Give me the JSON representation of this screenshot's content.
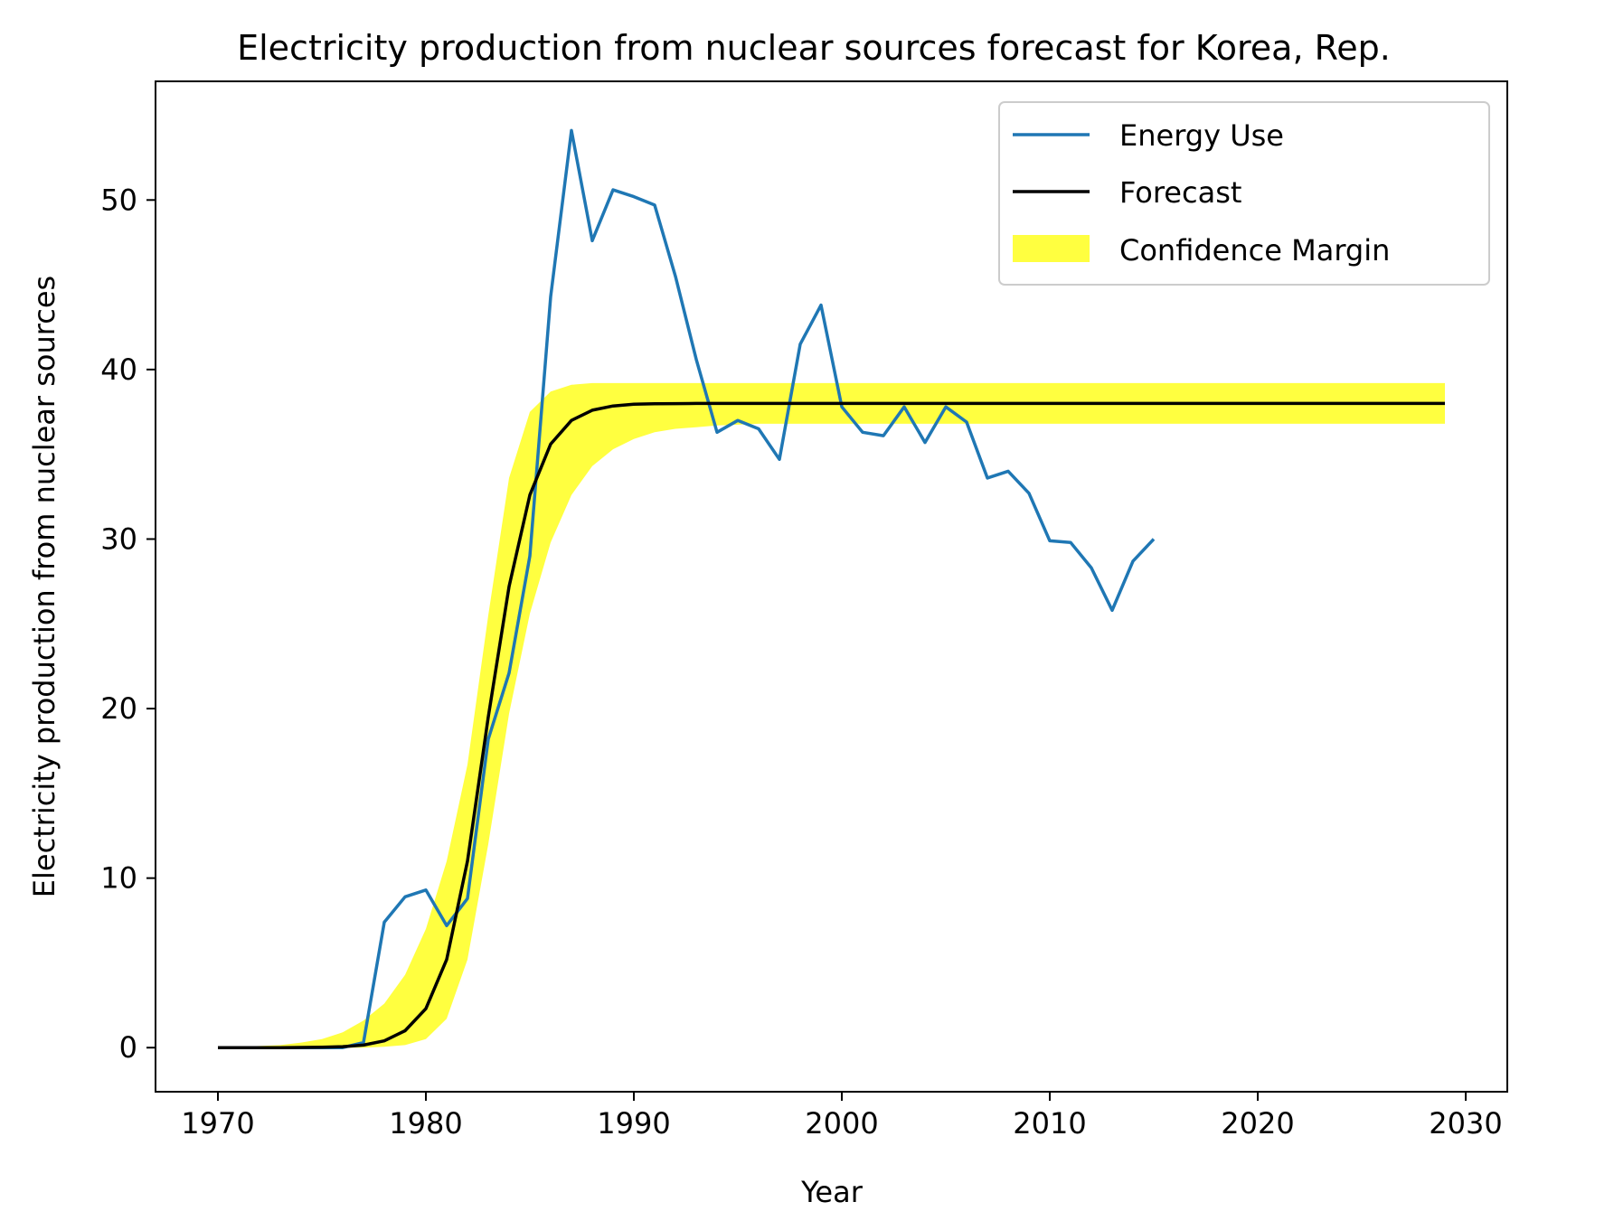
{
  "chart_data": {
    "type": "line",
    "title": "Electricity production from nuclear sources forecast for Korea, Rep.",
    "xlabel": "Year",
    "ylabel": "Electricity production from nuclear sources",
    "xlim": [
      1967,
      2032
    ],
    "ylim": [
      -2.6,
      57
    ],
    "xticks": [
      1970,
      1980,
      1990,
      2000,
      2010,
      2020,
      2030
    ],
    "yticks": [
      0,
      10,
      20,
      30,
      40,
      50
    ],
    "grid": false,
    "legend_position": "top-right",
    "colors": {
      "energy": "#1f77b4",
      "forecast": "#000000",
      "band": "#ffff00"
    },
    "series": [
      {
        "name": "Energy Use",
        "type": "line",
        "x": [
          1970,
          1971,
          1972,
          1973,
          1974,
          1975,
          1976,
          1977,
          1978,
          1979,
          1980,
          1981,
          1982,
          1983,
          1984,
          1985,
          1986,
          1987,
          1988,
          1989,
          1990,
          1991,
          1992,
          1993,
          1994,
          1995,
          1996,
          1997,
          1998,
          1999,
          2000,
          2001,
          2002,
          2003,
          2004,
          2005,
          2006,
          2007,
          2008,
          2009,
          2010,
          2011,
          2012,
          2013,
          2014,
          2015
        ],
        "values": [
          0,
          0,
          0,
          0,
          0,
          0,
          0,
          0.3,
          7.4,
          8.9,
          9.3,
          7.2,
          8.8,
          18.2,
          22.1,
          29.0,
          44.3,
          54.1,
          47.6,
          50.6,
          50.2,
          49.7,
          45.5,
          40.6,
          36.3,
          37.0,
          36.5,
          34.7,
          41.5,
          43.8,
          37.8,
          36.3,
          36.1,
          37.8,
          35.7,
          37.8,
          36.9,
          33.6,
          34.0,
          32.7,
          29.9,
          29.8,
          28.3,
          25.8,
          28.7,
          30.0
        ]
      },
      {
        "name": "Forecast",
        "type": "line",
        "x": [
          1970,
          1971,
          1972,
          1973,
          1974,
          1975,
          1976,
          1977,
          1978,
          1979,
          1980,
          1981,
          1982,
          1983,
          1984,
          1985,
          1986,
          1987,
          1988,
          1989,
          1990,
          1991,
          1992,
          1993,
          1994,
          1995,
          1996,
          1997,
          1998,
          1999,
          2000,
          2001,
          2002,
          2003,
          2004,
          2005,
          2006,
          2007,
          2008,
          2009,
          2010,
          2011,
          2012,
          2013,
          2014,
          2015,
          2016,
          2017,
          2018,
          2019,
          2020,
          2021,
          2022,
          2023,
          2024,
          2025,
          2026,
          2027,
          2028,
          2029
        ],
        "values": [
          0,
          0,
          0,
          0,
          0.01,
          0.03,
          0.06,
          0.15,
          0.4,
          1.0,
          2.3,
          5.2,
          11.0,
          19.5,
          27.2,
          32.6,
          35.6,
          37.0,
          37.6,
          37.85,
          37.95,
          37.98,
          37.99,
          38,
          38,
          38,
          38,
          38,
          38,
          38,
          38,
          38,
          38,
          38,
          38,
          38,
          38,
          38,
          38,
          38,
          38,
          38,
          38,
          38,
          38,
          38,
          38,
          38,
          38,
          38,
          38,
          38,
          38,
          38,
          38,
          38,
          38,
          38,
          38,
          38
        ]
      },
      {
        "name": "Confidence Margin",
        "type": "band",
        "x": [
          1970,
          1971,
          1972,
          1973,
          1974,
          1975,
          1976,
          1977,
          1978,
          1979,
          1980,
          1981,
          1982,
          1983,
          1984,
          1985,
          1986,
          1987,
          1988,
          1989,
          1990,
          1991,
          1992,
          1993,
          1994,
          1995,
          1996,
          1997,
          1998,
          1999,
          2000,
          2001,
          2002,
          2003,
          2004,
          2005,
          2006,
          2007,
          2008,
          2009,
          2010,
          2011,
          2012,
          2013,
          2014,
          2015,
          2016,
          2017,
          2018,
          2019,
          2020,
          2021,
          2022,
          2023,
          2024,
          2025,
          2026,
          2027,
          2028,
          2029
        ],
        "lower": [
          0,
          0,
          0,
          0,
          0,
          0,
          0,
          0,
          0.05,
          0.15,
          0.5,
          1.7,
          5.2,
          12.0,
          19.7,
          25.6,
          29.8,
          32.6,
          34.3,
          35.3,
          35.9,
          36.3,
          36.5,
          36.6,
          36.7,
          36.75,
          36.8,
          36.8,
          36.8,
          36.8,
          36.8,
          36.8,
          36.8,
          36.8,
          36.8,
          36.8,
          36.8,
          36.8,
          36.8,
          36.8,
          36.8,
          36.8,
          36.8,
          36.8,
          36.8,
          36.8,
          36.8,
          36.8,
          36.8,
          36.8,
          36.8,
          36.8,
          36.8,
          36.8,
          36.8,
          36.8,
          36.8,
          36.8,
          36.8,
          36.8
        ],
        "upper": [
          0.05,
          0.05,
          0.1,
          0.15,
          0.3,
          0.5,
          0.9,
          1.6,
          2.6,
          4.3,
          7.0,
          11.0,
          16.7,
          25.5,
          33.6,
          37.5,
          38.7,
          39.1,
          39.2,
          39.2,
          39.2,
          39.2,
          39.2,
          39.2,
          39.2,
          39.2,
          39.2,
          39.2,
          39.2,
          39.2,
          39.2,
          39.2,
          39.2,
          39.2,
          39.2,
          39.2,
          39.2,
          39.2,
          39.2,
          39.2,
          39.2,
          39.2,
          39.2,
          39.2,
          39.2,
          39.2,
          39.2,
          39.2,
          39.2,
          39.2,
          39.2,
          39.2,
          39.2,
          39.2,
          39.2,
          39.2,
          39.2,
          39.2,
          39.2,
          39.2
        ]
      }
    ]
  }
}
